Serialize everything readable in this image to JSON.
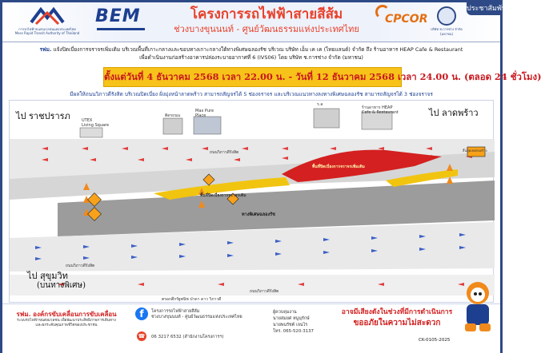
{
  "header": {
    "mrta_caption": "การรถไฟฟ้าขนส่งมวลชนแห่งประเทศไทย\nMass Rapid Transit Authority of Thailand",
    "bem_logo": "BEM",
    "title": "โครงการรถไฟฟ้าสายสีส้ม",
    "subtitle": "ช่วงบางขุนนนท์ - ศูนย์วัฒนธรรมแห่งประเทศไทย",
    "cpcor_logo": "CPCOR",
    "ck_caption": "บริษัท ช.การช่าง จำกัด (มหาชน)",
    "badge": "ประชาสัมพันธ์"
  },
  "notice": {
    "lead": "รฟม.",
    "text": " แจ้งปิดเบี่ยงการจราจรเพิ่มเติม บริเวณพื้นที่เกาะกลางและขอบทางเกาะกลางใต้ทางพิเศษฉลองรัช บริเวณ บริษัท เอ็ม เค เค (ไทยแลนด์) จำกัด ถึง ร้านอาหาร HEAP Cafe & Restaurant",
    "line2": "เพื่อดำเนินงานก่อสร้างอาคารปล่องระบายอากาศที่ 6 (IVS06) โดย บริษัท ช.การช่าง จำกัด (มหาชน)"
  },
  "date_bar": "ตั้งแต่วันที่ 4 ธันวาคม 2568 เวลา 22.00 น. - วันที่ 12 ธันวาคม 2568 เวลา 24.00 น. (ตลอด 24 ชั่วโมง)",
  "lane_note": "มีผลให้ถนนวิภาวดีรังสิต บริเวณปิดเบี่ยง ฝั่งมุ่งหน้าลาดพร้าว สามารถสัญจรได้ 5 ช่องจราจร และบริเวณแนวทางลงทางพิเศษฉลองรัช สามารถสัญจรได้ 3 ช่องจราจร",
  "map": {
    "dir_left_top": "ไป  ราชปรารภ",
    "dir_right_top": "ไป  ลาดพร้าว",
    "dir_left_bottom": "ไป  สุขุมวิท",
    "dir_left_bottom_sub": "(บนทางพิเศษ)",
    "landmark_utex": "UTEX\nLiving Square",
    "landmark_mk": "ติดรถนน",
    "landmark_max": "Max Pure\nPlace",
    "landmark_heap": "ร้านอาหาร HEAP\nCafe & Restaurant",
    "landmark_x": "ร.ล",
    "road_upper": "ถนนวิภาวดีรังสิต",
    "road_lower": "ถนนวิภาวดีรังสิต",
    "road_bottom": "ถนนวิภาวดีรังสิต",
    "expressway": "ทางพิเศษฉลองรัช",
    "zone_red": "พื้นที่ปิดเบี่ยงการจราจรเพิ่มเติม",
    "zone_yellow": "พื้นที่ปิดเบี่ยงการจราจรเดิม",
    "sign_right": "สิ้นสุดเขตก่อสร้าง",
    "label_bottom": "ตรอกตึกรัฐพนิช ป่าดา ดาว วิภาวดี"
  },
  "footer": {
    "drive_title": "รฟม. องค์กรขับเคลื่อนการขับเคลื่อน",
    "drive_sub": "ระบบรถไฟฟ้าขนส่งมวลชน เพื่อพัฒนาประสิทธิภาพการเดินทาง\nและยกระดับคุณภาพชีวิตของประชาชน",
    "project_name": "โครงการรถไฟฟ้าสายสีส้ม\nช่วงบางขุนนนท์ - ศูนย์วัฒนธรรมแห่งประเทศไทย",
    "phone": "06 3217 6532 (สำนักงานโครงการฯ)",
    "contact_title": "ผู้ควบคุมงาน",
    "contact_1": "นายสมยศ หนูนุรักษ์",
    "contact_2": "นายพนรัชต์ เจนไร",
    "contact_tel": "โทร. 065-520-3137",
    "apology_1": "อาจมีเสียงดังในช่วงที่มีการดำเนินการ",
    "apology_2": "ขออภัยในความไม่สะดวก",
    "code": "CK-0105-2025"
  }
}
